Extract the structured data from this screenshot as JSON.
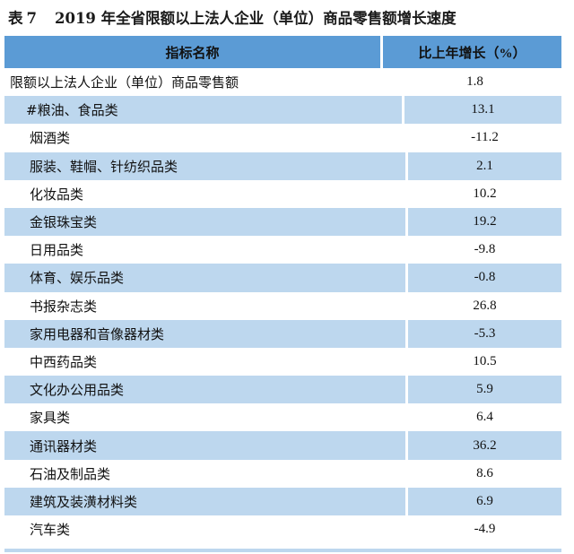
{
  "title": {
    "label": "表",
    "number": "7",
    "text": "2019 年全省限额以上法人企业（单位）商品零售额增长速度"
  },
  "table": {
    "headers": [
      "指标名称",
      "比上年增长（%）"
    ],
    "rows": [
      {
        "name": "限额以上法人企业（单位）商品零售额",
        "value": "1.8"
      },
      {
        "name": "#粮油、食品类",
        "value": "13.1"
      },
      {
        "name": "烟酒类",
        "value": "-11.2"
      },
      {
        "name": "服装、鞋帽、针纺织品类",
        "value": "2.1"
      },
      {
        "name": "化妆品类",
        "value": "10.2"
      },
      {
        "name": "金银珠宝类",
        "value": "19.2"
      },
      {
        "name": "日用品类",
        "value": "-9.8"
      },
      {
        "name": "体育、娱乐品类",
        "value": "-0.8"
      },
      {
        "name": "书报杂志类",
        "value": "26.8"
      },
      {
        "name": "家用电器和音像器材类",
        "value": "-5.3"
      },
      {
        "name": "中西药品类",
        "value": "10.5"
      },
      {
        "name": "文化办公用品类",
        "value": "5.9"
      },
      {
        "name": "家具类",
        "value": "6.4"
      },
      {
        "name": "通讯器材类",
        "value": "36.2"
      },
      {
        "name": "石油及制品类",
        "value": "8.6"
      },
      {
        "name": "建筑及装潢材料类",
        "value": "6.9"
      },
      {
        "name": "汽车类",
        "value": "-4.9"
      }
    ]
  },
  "colors": {
    "header_bg": "#5b9bd5",
    "band_bg": "#bdd7ee"
  }
}
